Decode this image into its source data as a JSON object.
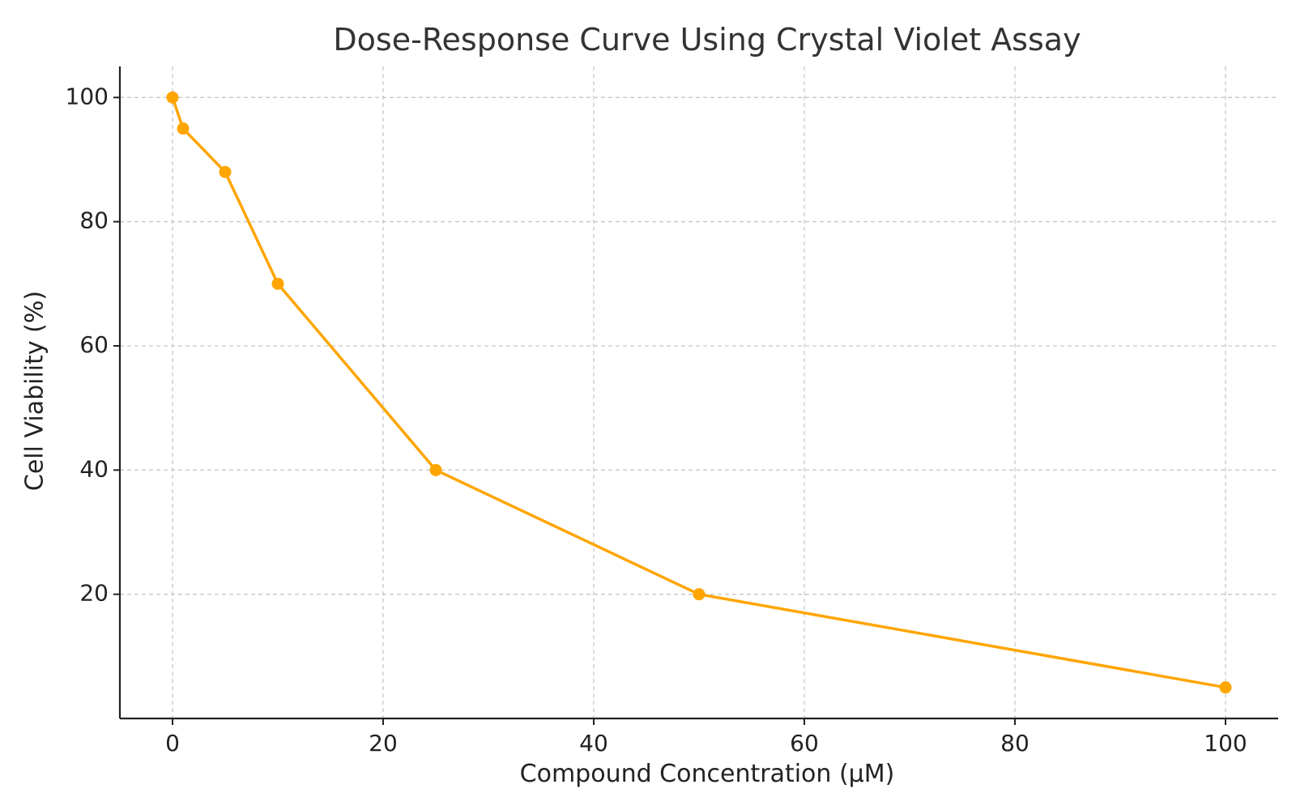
{
  "chart_data": {
    "type": "line",
    "title": "Dose-Response Curve Using Crystal Violet Assay",
    "xlabel": "Compound Concentration (µM)",
    "ylabel": "Cell Viability (%)",
    "xlim": [
      -5,
      105
    ],
    "ylim": [
      0,
      105
    ],
    "xticks": [
      0,
      20,
      40,
      60,
      80,
      100
    ],
    "yticks": [
      20,
      40,
      60,
      80,
      100
    ],
    "grid": true,
    "series": [
      {
        "x": [
          0,
          1,
          5,
          10,
          25,
          50,
          100
        ],
        "y": [
          100,
          95,
          88,
          70,
          40,
          20,
          5
        ],
        "color": "#FFA500",
        "marker": "circle"
      }
    ]
  }
}
